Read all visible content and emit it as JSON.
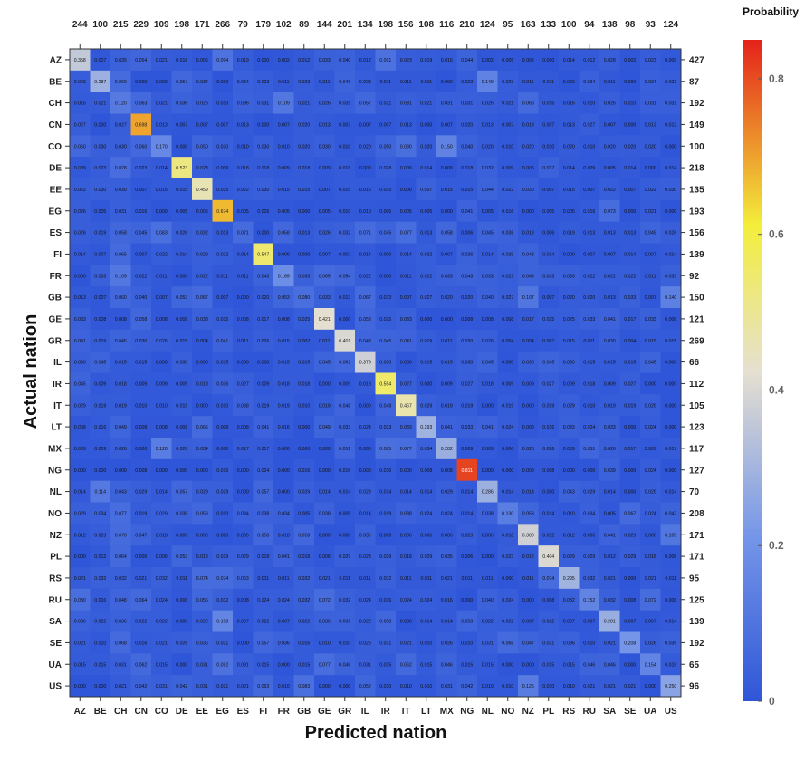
{
  "chart_data": {
    "type": "heatmap",
    "xlabel": "Predicted nation",
    "ylabel": "Actual nation",
    "colorbar": {
      "title": "Probability",
      "ticks": [
        "0",
        "0.2",
        "0.4",
        "0.6",
        "0.8"
      ],
      "range": [
        0,
        0.85
      ],
      "colors": [
        "#2f56d8",
        "#7596e8",
        "#e6e0d0",
        "#f3ee3a",
        "#e4221b"
      ]
    },
    "x_categories": [
      "AZ",
      "BE",
      "CH",
      "CN",
      "CO",
      "DE",
      "EE",
      "EG",
      "ES",
      "FI",
      "FR",
      "GB",
      "GE",
      "GR",
      "IL",
      "IR",
      "IT",
      "LT",
      "MX",
      "NG",
      "NL",
      "NO",
      "NZ",
      "PL",
      "RS",
      "RU",
      "SA",
      "SE",
      "UA",
      "US"
    ],
    "y_categories": [
      "AZ",
      "BE",
      "CH",
      "CN",
      "CO",
      "DE",
      "EE",
      "EG",
      "ES",
      "FI",
      "FR",
      "GB",
      "GE",
      "GR",
      "IL",
      "IR",
      "IT",
      "LT",
      "MX",
      "NG",
      "NL",
      "NO",
      "NZ",
      "PL",
      "RS",
      "RU",
      "SA",
      "SE",
      "UA",
      "US"
    ],
    "column_totals": [
      "244",
      "100",
      "215",
      "229",
      "109",
      "198",
      "171",
      "266",
      "79",
      "179",
      "102",
      "89",
      "144",
      "201",
      "134",
      "198",
      "156",
      "108",
      "116",
      "210",
      "124",
      "95",
      "163",
      "133",
      "100",
      "94",
      "138",
      "98",
      "93",
      "124"
    ],
    "row_totals": [
      "427",
      "87",
      "192",
      "149",
      "100",
      "218",
      "135",
      "193",
      "156",
      "139",
      "92",
      "150",
      "121",
      "269",
      "66",
      "112",
      "105",
      "123",
      "117",
      "127",
      "70",
      "208",
      "171",
      "171",
      "95",
      "125",
      "139",
      "192",
      "65",
      "96"
    ],
    "values": [
      [
        "0.358",
        "0.007",
        "0.035",
        "0.054",
        "0.021",
        "0.016",
        "0.005",
        "0.094",
        "0.019",
        "0.000",
        "0.002",
        "0.012",
        "0.033",
        "0.040",
        "0.012",
        "0.091",
        "0.023",
        "0.019",
        "0.016",
        "0.044",
        "0.002",
        "0.005",
        "0.002",
        "0.000",
        "0.014",
        "0.012",
        "0.028",
        "0.002",
        "0.023",
        "0.009"
      ],
      [
        "0.023",
        "0.287",
        "0.069",
        "0.000",
        "0.000",
        "0.057",
        "0.034",
        "0.000",
        "0.034",
        "0.023",
        "0.011",
        "0.023",
        "0.011",
        "0.046",
        "0.023",
        "0.011",
        "0.011",
        "0.011",
        "0.000",
        "0.023",
        "0.149",
        "0.023",
        "0.011",
        "0.011",
        "0.000",
        "0.034",
        "0.011",
        "0.000",
        "0.034",
        "0.023"
      ],
      [
        "0.016",
        "0.021",
        "0.120",
        "0.063",
        "0.021",
        "0.036",
        "0.026",
        "0.010",
        "0.036",
        "0.031",
        "0.109",
        "0.021",
        "0.026",
        "0.031",
        "0.057",
        "0.021",
        "0.031",
        "0.021",
        "0.031",
        "0.031",
        "0.026",
        "0.021",
        "0.068",
        "0.016",
        "0.016",
        "0.010",
        "0.026",
        "0.010",
        "0.031",
        "0.031"
      ],
      [
        "0.027",
        "0.000",
        "0.027",
        "0.698",
        "0.013",
        "0.007",
        "0.007",
        "0.007",
        "0.013",
        "0.000",
        "0.007",
        "0.020",
        "0.013",
        "0.007",
        "0.007",
        "0.007",
        "0.013",
        "0.000",
        "0.007",
        "0.020",
        "0.013",
        "0.007",
        "0.013",
        "0.007",
        "0.013",
        "0.027",
        "0.007",
        "0.000",
        "0.013",
        "0.013"
      ],
      [
        "0.060",
        "0.030",
        "0.030",
        "0.060",
        "0.170",
        "0.000",
        "0.050",
        "0.030",
        "0.010",
        "0.030",
        "0.010",
        "0.020",
        "0.030",
        "0.010",
        "0.020",
        "0.050",
        "0.080",
        "0.020",
        "0.150",
        "0.040",
        "0.020",
        "0.010",
        "0.020",
        "0.010",
        "0.020",
        "0.010",
        "0.020",
        "0.020",
        "0.020",
        "0.000"
      ],
      [
        "0.009",
        "0.023",
        "0.078",
        "0.023",
        "0.014",
        "0.523",
        "0.023",
        "0.009",
        "0.018",
        "0.018",
        "0.009",
        "0.018",
        "0.009",
        "0.018",
        "0.000",
        "0.028",
        "0.009",
        "0.014",
        "0.000",
        "0.018",
        "0.032",
        "0.009",
        "0.005",
        "0.037",
        "0.014",
        "0.009",
        "0.005",
        "0.014",
        "0.000",
        "0.014"
      ],
      [
        "0.022",
        "0.030",
        "0.030",
        "0.007",
        "0.015",
        "0.015",
        "0.459",
        "0.015",
        "0.022",
        "0.030",
        "0.015",
        "0.015",
        "0.007",
        "0.015",
        "0.015",
        "0.015",
        "0.000",
        "0.037",
        "0.015",
        "0.015",
        "0.044",
        "0.022",
        "0.030",
        "0.007",
        "0.015",
        "0.007",
        "0.022",
        "0.007",
        "0.022",
        "0.030"
      ],
      [
        "0.026",
        "0.005",
        "0.031",
        "0.016",
        "0.000",
        "0.005",
        "0.005",
        "0.674",
        "0.005",
        "0.005",
        "0.005",
        "0.000",
        "0.005",
        "0.010",
        "0.010",
        "0.005",
        "0.005",
        "0.005",
        "0.000",
        "0.041",
        "0.005",
        "0.016",
        "0.000",
        "0.005",
        "0.005",
        "0.016",
        "0.073",
        "0.000",
        "0.021",
        "0.000"
      ],
      [
        "0.026",
        "0.019",
        "0.058",
        "0.045",
        "0.083",
        "0.026",
        "0.032",
        "0.013",
        "0.071",
        "0.000",
        "0.058",
        "0.013",
        "0.026",
        "0.032",
        "0.071",
        "0.045",
        "0.077",
        "0.013",
        "0.058",
        "0.006",
        "0.045",
        "0.038",
        "0.013",
        "0.006",
        "0.019",
        "0.013",
        "0.013",
        "0.013",
        "0.045",
        "0.026"
      ],
      [
        "0.014",
        "0.007",
        "0.065",
        "0.007",
        "0.022",
        "0.014",
        "0.029",
        "0.022",
        "0.014",
        "0.547",
        "0.000",
        "0.000",
        "0.007",
        "0.007",
        "0.014",
        "0.000",
        "0.014",
        "0.022",
        "0.007",
        "0.036",
        "0.014",
        "0.029",
        "0.043",
        "0.014",
        "0.000",
        "0.007",
        "0.007",
        "0.014",
        "0.007",
        "0.014"
      ],
      [
        "0.000",
        "0.033",
        "0.109",
        "0.022",
        "0.011",
        "0.000",
        "0.022",
        "0.011",
        "0.011",
        "0.043",
        "0.185",
        "0.033",
        "0.065",
        "0.054",
        "0.022",
        "0.000",
        "0.011",
        "0.022",
        "0.033",
        "0.043",
        "0.033",
        "0.022",
        "0.043",
        "0.033",
        "0.033",
        "0.022",
        "0.022",
        "0.022",
        "0.011",
        "0.033"
      ],
      [
        "0.013",
        "0.007",
        "0.060",
        "0.040",
        "0.007",
        "0.053",
        "0.067",
        "0.007",
        "0.000",
        "0.020",
        "0.053",
        "0.080",
        "0.033",
        "0.013",
        "0.067",
        "0.013",
        "0.007",
        "0.027",
        "0.020",
        "0.020",
        "0.040",
        "0.027",
        "0.107",
        "0.007",
        "0.020",
        "0.020",
        "0.013",
        "0.033",
        "0.007",
        "0.140"
      ],
      [
        "0.033",
        "0.008",
        "0.008",
        "0.058",
        "0.008",
        "0.008",
        "0.033",
        "0.025",
        "0.008",
        "0.017",
        "0.008",
        "0.025",
        "0.421",
        "0.000",
        "0.058",
        "0.025",
        "0.033",
        "0.000",
        "0.000",
        "0.008",
        "0.008",
        "0.008",
        "0.017",
        "0.025",
        "0.025",
        "0.033",
        "0.041",
        "0.017",
        "0.033",
        "0.008"
      ],
      [
        "0.041",
        "0.019",
        "0.045",
        "0.030",
        "0.026",
        "0.015",
        "0.004",
        "0.041",
        "0.011",
        "0.026",
        "0.015",
        "0.007",
        "0.011",
        "0.401",
        "0.048",
        "0.045",
        "0.041",
        "0.019",
        "0.011",
        "0.030",
        "0.026",
        "0.004",
        "0.004",
        "0.007",
        "0.015",
        "0.011",
        "0.030",
        "0.004",
        "0.015",
        "0.015"
      ],
      [
        "0.030",
        "0.045",
        "0.015",
        "0.015",
        "0.000",
        "0.030",
        "0.000",
        "0.015",
        "0.000",
        "0.000",
        "0.015",
        "0.015",
        "0.045",
        "0.061",
        "0.379",
        "0.030",
        "0.000",
        "0.015",
        "0.015",
        "0.030",
        "0.045",
        "0.000",
        "0.030",
        "0.045",
        "0.030",
        "0.015",
        "0.015",
        "0.015",
        "0.045",
        "0.000"
      ],
      [
        "0.045",
        "0.009",
        "0.018",
        "0.009",
        "0.009",
        "0.009",
        "0.018",
        "0.036",
        "0.027",
        "0.009",
        "0.018",
        "0.018",
        "0.000",
        "0.009",
        "0.018",
        "0.554",
        "0.027",
        "0.000",
        "0.009",
        "0.027",
        "0.018",
        "0.009",
        "0.009",
        "0.027",
        "0.009",
        "0.018",
        "0.009",
        "0.027",
        "0.000",
        "0.000"
      ],
      [
        "0.029",
        "0.019",
        "0.019",
        "0.010",
        "0.010",
        "0.019",
        "0.000",
        "0.010",
        "0.038",
        "0.019",
        "0.019",
        "0.010",
        "0.019",
        "0.048",
        "0.000",
        "0.048",
        "0.467",
        "0.029",
        "0.019",
        "0.019",
        "0.000",
        "0.019",
        "0.000",
        "0.019",
        "0.029",
        "0.010",
        "0.019",
        "0.019",
        "0.029",
        "0.000"
      ],
      [
        "0.008",
        "0.016",
        "0.049",
        "0.008",
        "0.008",
        "0.008",
        "0.065",
        "0.008",
        "0.008",
        "0.041",
        "0.016",
        "0.000",
        "0.049",
        "0.033",
        "0.024",
        "0.033",
        "0.033",
        "0.293",
        "0.041",
        "0.033",
        "0.041",
        "0.024",
        "0.008",
        "0.016",
        "0.033",
        "0.024",
        "0.033",
        "0.000",
        "0.024",
        "0.000"
      ],
      [
        "0.009",
        "0.009",
        "0.026",
        "0.000",
        "0.128",
        "0.026",
        "0.034",
        "0.000",
        "0.017",
        "0.017",
        "0.000",
        "0.000",
        "0.000",
        "0.051",
        "0.000",
        "0.085",
        "0.077",
        "0.034",
        "0.282",
        "0.009",
        "0.009",
        "0.000",
        "0.026",
        "0.026",
        "0.009",
        "0.051",
        "0.026",
        "0.017",
        "0.009",
        "0.017"
      ],
      [
        "0.000",
        "0.000",
        "0.000",
        "0.008",
        "0.000",
        "0.000",
        "0.000",
        "0.016",
        "0.000",
        "0.024",
        "0.000",
        "0.016",
        "0.000",
        "0.016",
        "0.000",
        "0.016",
        "0.000",
        "0.008",
        "0.008",
        "0.811",
        "0.000",
        "0.000",
        "0.008",
        "0.008",
        "0.000",
        "0.000",
        "0.039",
        "0.000",
        "0.024",
        "0.000"
      ],
      [
        "0.014",
        "0.114",
        "0.043",
        "0.029",
        "0.014",
        "0.057",
        "0.029",
        "0.029",
        "0.000",
        "0.057",
        "0.000",
        "0.029",
        "0.014",
        "0.014",
        "0.029",
        "0.014",
        "0.014",
        "0.014",
        "0.029",
        "0.014",
        "0.286",
        "0.014",
        "0.014",
        "0.000",
        "0.043",
        "0.029",
        "0.014",
        "0.000",
        "0.029",
        "0.014"
      ],
      [
        "0.029",
        "0.034",
        "0.077",
        "0.019",
        "0.029",
        "0.038",
        "0.058",
        "0.010",
        "0.034",
        "0.038",
        "0.034",
        "0.005",
        "0.038",
        "0.005",
        "0.014",
        "0.019",
        "0.038",
        "0.024",
        "0.024",
        "0.014",
        "0.038",
        "0.130",
        "0.053",
        "0.014",
        "0.010",
        "0.034",
        "0.005",
        "0.067",
        "0.024",
        "0.043"
      ],
      [
        "0.012",
        "0.023",
        "0.070",
        "0.047",
        "0.018",
        "0.006",
        "0.006",
        "0.000",
        "0.006",
        "0.058",
        "0.018",
        "0.058",
        "0.000",
        "0.000",
        "0.035",
        "0.000",
        "0.006",
        "0.006",
        "0.006",
        "0.023",
        "0.006",
        "0.018",
        "0.380",
        "0.012",
        "0.012",
        "0.006",
        "0.041",
        "0.023",
        "0.006",
        "0.105"
      ],
      [
        "0.000",
        "0.012",
        "0.064",
        "0.006",
        "0.006",
        "0.053",
        "0.018",
        "0.029",
        "0.029",
        "0.018",
        "0.041",
        "0.018",
        "0.006",
        "0.029",
        "0.023",
        "0.029",
        "0.018",
        "0.029",
        "0.035",
        "0.006",
        "0.000",
        "0.023",
        "0.012",
        "0.404",
        "0.029",
        "0.029",
        "0.012",
        "0.029",
        "0.018",
        "0.006"
      ],
      [
        "0.021",
        "0.032",
        "0.032",
        "0.021",
        "0.032",
        "0.011",
        "0.074",
        "0.074",
        "0.053",
        "0.011",
        "0.011",
        "0.032",
        "0.021",
        "0.011",
        "0.011",
        "0.032",
        "0.011",
        "0.011",
        "0.021",
        "0.011",
        "0.011",
        "0.000",
        "0.011",
        "0.074",
        "0.295",
        "0.032",
        "0.021",
        "0.000",
        "0.021",
        "0.011"
      ],
      [
        "0.080",
        "0.016",
        "0.048",
        "0.064",
        "0.024",
        "0.008",
        "0.056",
        "0.032",
        "0.008",
        "0.024",
        "0.024",
        "0.032",
        "0.072",
        "0.032",
        "0.024",
        "0.016",
        "0.024",
        "0.024",
        "0.016",
        "0.000",
        "0.040",
        "0.024",
        "0.000",
        "0.008",
        "0.032",
        "0.152",
        "0.032",
        "0.008",
        "0.072",
        "0.008"
      ],
      [
        "0.036",
        "0.022",
        "0.036",
        "0.022",
        "0.022",
        "0.000",
        "0.022",
        "0.158",
        "0.007",
        "0.022",
        "0.007",
        "0.022",
        "0.036",
        "0.036",
        "0.022",
        "0.058",
        "0.000",
        "0.014",
        "0.014",
        "0.050",
        "0.022",
        "0.022",
        "0.007",
        "0.022",
        "0.007",
        "0.007",
        "0.281",
        "0.007",
        "0.007",
        "0.014"
      ],
      [
        "0.021",
        "0.010",
        "0.068",
        "0.016",
        "0.021",
        "0.026",
        "0.036",
        "0.031",
        "0.000",
        "0.057",
        "0.036",
        "0.016",
        "0.010",
        "0.010",
        "0.026",
        "0.031",
        "0.021",
        "0.010",
        "0.026",
        "0.010",
        "0.031",
        "0.068",
        "0.047",
        "0.031",
        "0.036",
        "0.010",
        "0.021",
        "0.208",
        "0.026",
        "0.036"
      ],
      [
        "0.015",
        "0.015",
        "0.031",
        "0.062",
        "0.015",
        "0.000",
        "0.031",
        "0.092",
        "0.031",
        "0.015",
        "0.000",
        "0.015",
        "0.077",
        "0.046",
        "0.031",
        "0.015",
        "0.062",
        "0.015",
        "0.046",
        "0.015",
        "0.015",
        "0.000",
        "0.000",
        "0.015",
        "0.015",
        "0.046",
        "0.046",
        "0.000",
        "0.154",
        "0.015"
      ],
      [
        "0.000",
        "0.000",
        "0.021",
        "0.042",
        "0.031",
        "0.042",
        "0.031",
        "0.021",
        "0.021",
        "0.063",
        "0.010",
        "0.083",
        "0.000",
        "0.000",
        "0.052",
        "0.010",
        "0.010",
        "0.010",
        "0.031",
        "0.042",
        "0.010",
        "0.010",
        "0.125",
        "0.010",
        "0.010",
        "0.021",
        "0.021",
        "0.021",
        "0.000",
        "0.250"
      ]
    ]
  }
}
